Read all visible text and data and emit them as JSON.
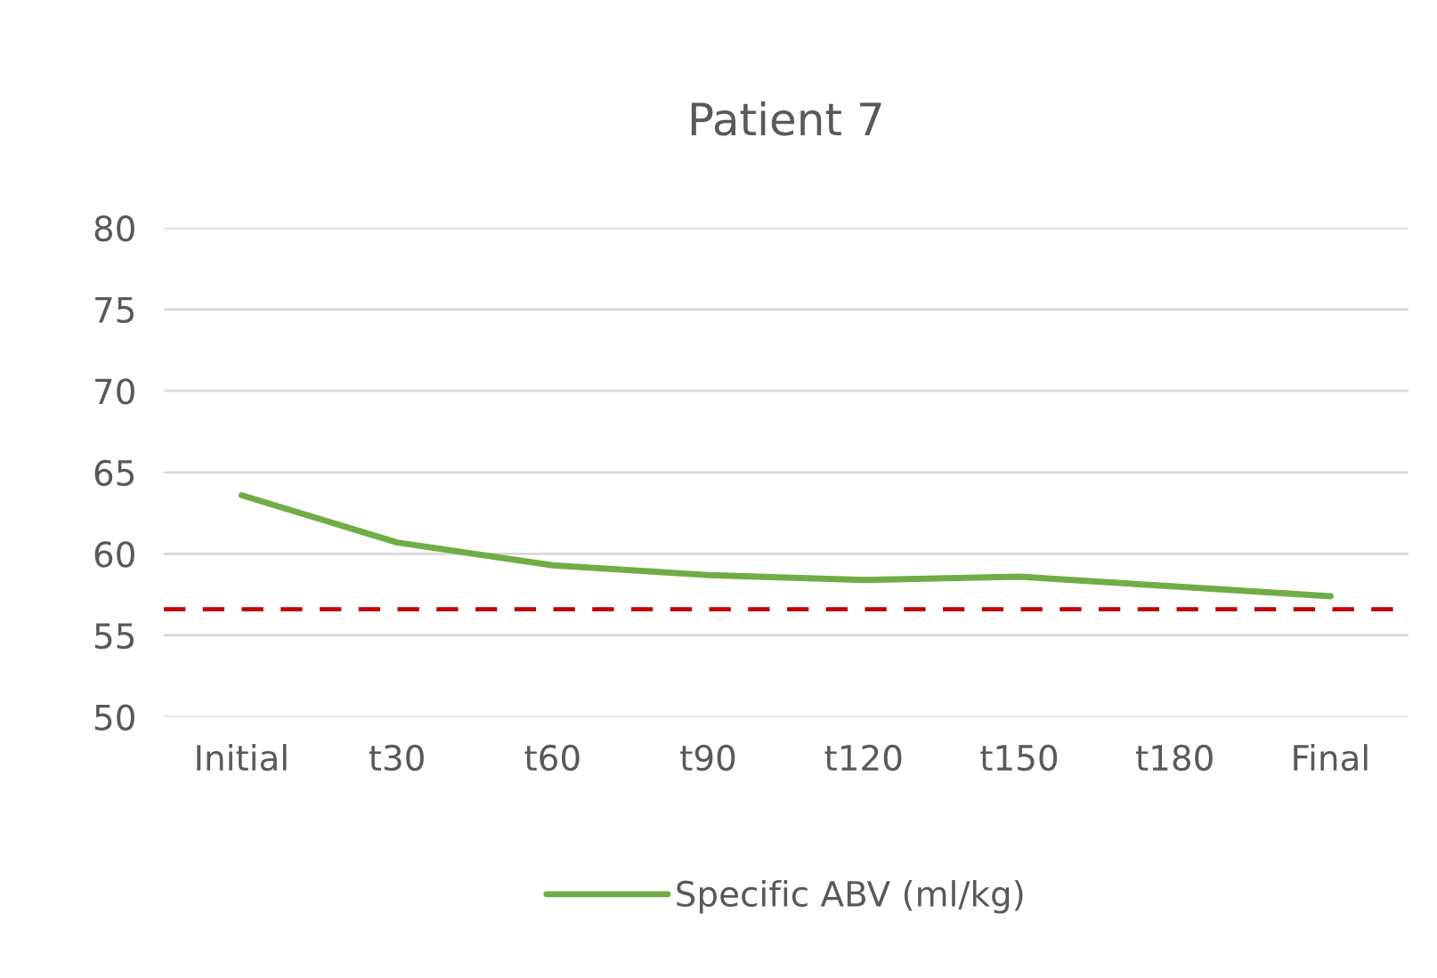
{
  "chart_data": {
    "type": "line",
    "title": "Patient 7",
    "categories": [
      "Initial",
      "t30",
      "t60",
      "t90",
      "t120",
      "t150",
      "t180",
      "Final"
    ],
    "series": [
      {
        "name": "Specific ABV (ml/kg)",
        "color": "#70ad47",
        "values": [
          63.6,
          60.7,
          59.3,
          58.7,
          58.4,
          58.6,
          58.0,
          57.4
        ]
      }
    ],
    "ylim": [
      50,
      80
    ],
    "yticks": [
      50,
      55,
      60,
      65,
      70,
      75,
      80
    ],
    "ref_lines": [
      {
        "axis": "y",
        "value": 56.6,
        "color": "#c00000",
        "line_style": "dashed"
      }
    ],
    "grid": "y",
    "legend": "bottom",
    "marker": "none",
    "line_style": "solid"
  }
}
